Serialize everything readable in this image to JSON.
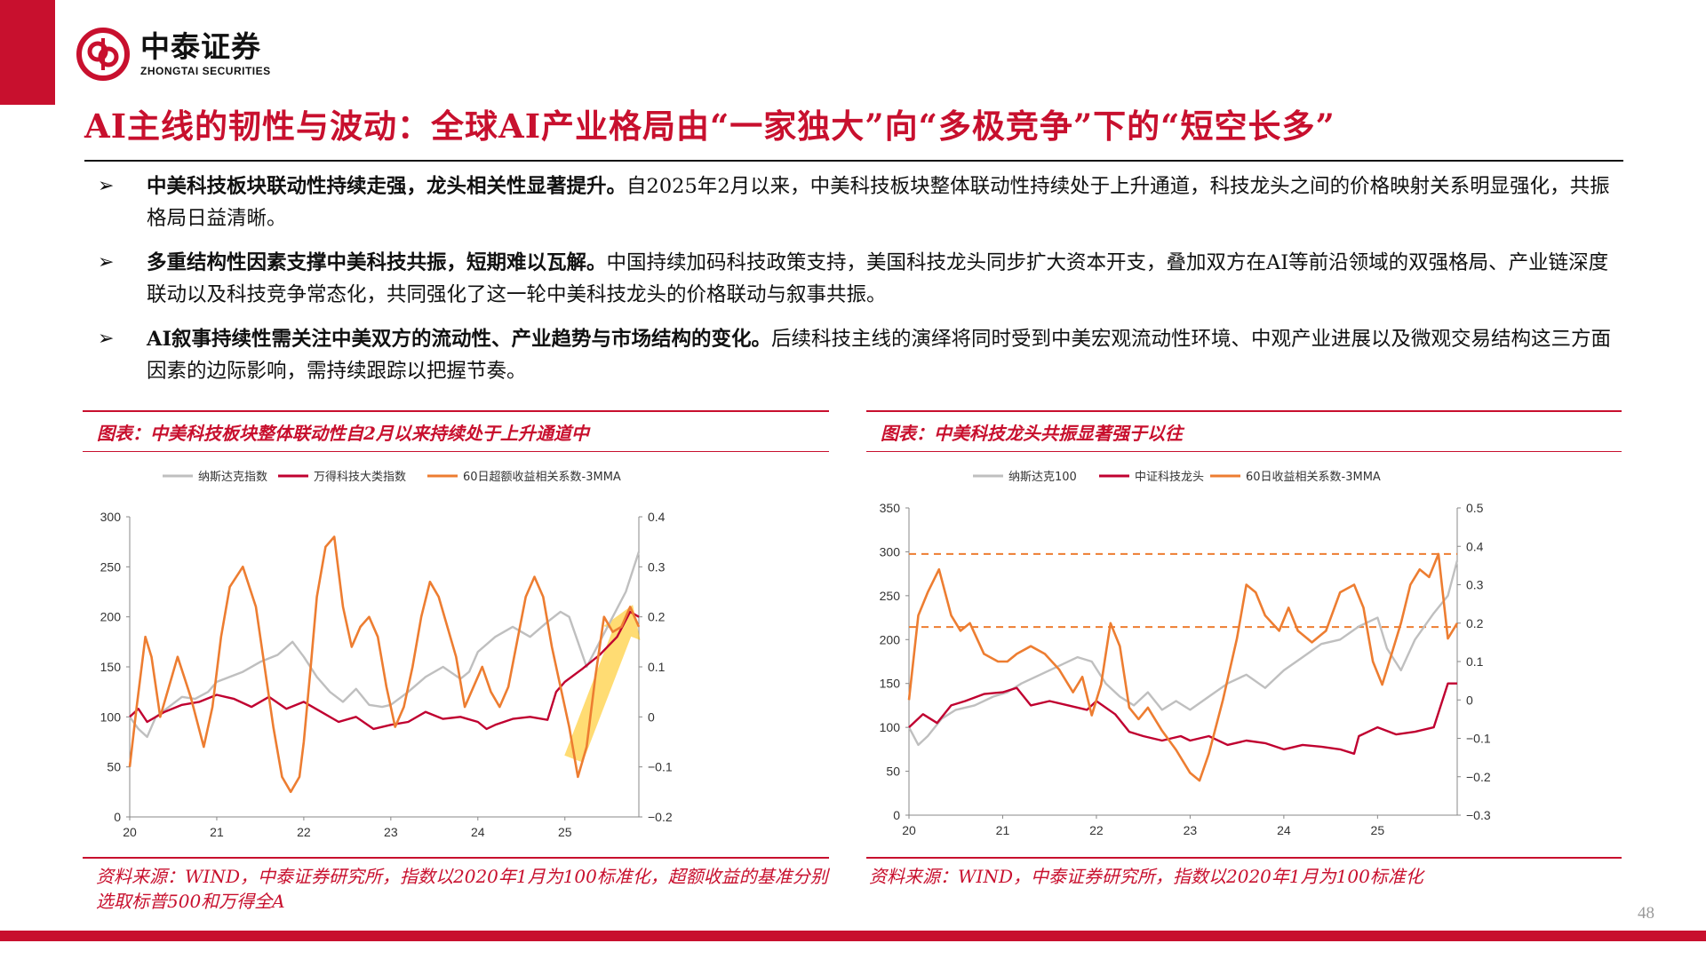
{
  "header": {
    "logo_cn": "中泰证券",
    "logo_en": "ZHONGTAI SECURITIES",
    "title": "AI主线的韧性与波动：全球AI产业格局由“一家独大”向“多极竞争”下的“短空长多”",
    "brand_color": "#c8102e"
  },
  "bullets": [
    {
      "mark": "➢",
      "bold": "中美科技板块联动性持续走强，龙头相关性显著提升。",
      "text": "自2025年2月以来，中美科技板块整体联动性持续处于上升通道，科技龙头之间的价格映射关系明显强化，共振格局日益清晰。"
    },
    {
      "mark": "➢",
      "bold": "多重结构性因素支撑中美科技共振，短期难以瓦解。",
      "text": "中国持续加码科技政策支持，美国科技龙头同步扩大资本开支，叠加双方在AI等前沿领域的双强格局、产业链深度联动以及科技竞争常态化，共同强化了这一轮中美科技龙头的价格联动与叙事共振。"
    },
    {
      "mark": "➢",
      "bold": "AI叙事持续性需关注中美双方的流动性、产业趋势与市场结构的变化。",
      "text": "后续科技主线的演绎将同时受到中美宏观流动性环境、中观产业进展以及微观交易结构这三方面因素的边际影响，需持续跟踪以把握节奏。"
    }
  ],
  "panels": {
    "left_title": "图表：中美科技板块整体联动性自2月以来持续处于上升通道中",
    "right_title": "图表：中美科技龙头共振显著强于以往",
    "left_source": "资料来源：WIND，中泰证券研究所，指数以2020年1月为100标准化，超额收益的基准分别选取标普500和万得全A",
    "right_source": "资料来源：WIND，中泰证券研究所，指数以2020年1月为100标准化"
  },
  "page_number": "48",
  "chart_data": [
    {
      "type": "line",
      "x_ticks": [
        "20",
        "21",
        "22",
        "23",
        "24",
        "25"
      ],
      "x_range": [
        2020,
        2025.85
      ],
      "ylim_left": [
        0,
        300
      ],
      "yticks_left": [
        "0",
        "50",
        "100",
        "150",
        "200",
        "250",
        "300"
      ],
      "ylim_right": [
        -0.2,
        0.4
      ],
      "yticks_right": [
        "−0.2",
        "−0.1",
        "0",
        "0.1",
        "0.2",
        "0.3",
        "0.4"
      ],
      "legend_position": "top",
      "annotation": "upward arrow from early 2025 to late 2025",
      "series": [
        {
          "name": "纳斯达克指数",
          "axis": "left",
          "color": "#bfbfbf",
          "x": [
            2020.0,
            2020.1,
            2020.2,
            2020.3,
            2020.45,
            2020.6,
            2020.75,
            2020.9,
            2021.0,
            2021.15,
            2021.3,
            2021.5,
            2021.7,
            2021.87,
            2022.0,
            2022.15,
            2022.3,
            2022.45,
            2022.6,
            2022.75,
            2022.9,
            2023.0,
            2023.2,
            2023.4,
            2023.6,
            2023.8,
            2023.9,
            2024.0,
            2024.2,
            2024.4,
            2024.6,
            2024.8,
            2024.95,
            2025.05,
            2025.15,
            2025.25,
            2025.4,
            2025.55,
            2025.7,
            2025.85
          ],
          "y": [
            100,
            88,
            80,
            100,
            110,
            120,
            118,
            125,
            135,
            140,
            145,
            155,
            162,
            175,
            160,
            140,
            125,
            115,
            128,
            112,
            110,
            112,
            125,
            140,
            150,
            138,
            145,
            165,
            180,
            190,
            180,
            195,
            205,
            200,
            175,
            150,
            175,
            200,
            225,
            265
          ]
        },
        {
          "name": "万得科技大类指数",
          "axis": "left",
          "color": "#c00030",
          "x": [
            2020.0,
            2020.1,
            2020.2,
            2020.4,
            2020.6,
            2020.8,
            2021.0,
            2021.2,
            2021.4,
            2021.6,
            2021.8,
            2022.0,
            2022.2,
            2022.4,
            2022.6,
            2022.8,
            2023.0,
            2023.2,
            2023.4,
            2023.6,
            2023.8,
            2024.0,
            2024.1,
            2024.2,
            2024.4,
            2024.6,
            2024.8,
            2024.9,
            2025.0,
            2025.2,
            2025.4,
            2025.6,
            2025.75,
            2025.85
          ],
          "y": [
            100,
            108,
            95,
            105,
            112,
            115,
            122,
            118,
            110,
            120,
            108,
            115,
            105,
            95,
            100,
            88,
            92,
            95,
            105,
            98,
            100,
            95,
            88,
            92,
            98,
            100,
            97,
            125,
            135,
            148,
            162,
            180,
            205,
            200
          ]
        },
        {
          "name": "60日超额收益相关系数-3MMA",
          "axis": "right",
          "color": "#ed7d31",
          "x": [
            2020.0,
            2020.08,
            2020.18,
            2020.25,
            2020.35,
            2020.45,
            2020.55,
            2020.7,
            2020.85,
            2020.95,
            2021.05,
            2021.15,
            2021.3,
            2021.45,
            2021.55,
            2021.65,
            2021.75,
            2021.85,
            2021.95,
            2022.0,
            2022.08,
            2022.15,
            2022.25,
            2022.35,
            2022.45,
            2022.55,
            2022.65,
            2022.75,
            2022.85,
            2022.95,
            2023.05,
            2023.15,
            2023.25,
            2023.35,
            2023.45,
            2023.55,
            2023.65,
            2023.75,
            2023.85,
            2023.95,
            2024.05,
            2024.15,
            2024.25,
            2024.35,
            2024.45,
            2024.55,
            2024.65,
            2024.75,
            2024.85,
            2024.95,
            2025.05,
            2025.15,
            2025.25,
            2025.35,
            2025.45,
            2025.55,
            2025.65,
            2025.75,
            2025.85
          ],
          "y": [
            -0.1,
            0.02,
            0.16,
            0.12,
            0.0,
            0.06,
            0.12,
            0.04,
            -0.06,
            0.02,
            0.16,
            0.26,
            0.3,
            0.22,
            0.1,
            -0.02,
            -0.12,
            -0.15,
            -0.12,
            -0.05,
            0.1,
            0.24,
            0.34,
            0.36,
            0.22,
            0.14,
            0.18,
            0.2,
            0.16,
            0.06,
            -0.02,
            0.02,
            0.1,
            0.2,
            0.27,
            0.24,
            0.18,
            0.12,
            0.02,
            0.06,
            0.1,
            0.05,
            0.02,
            0.06,
            0.15,
            0.24,
            0.28,
            0.24,
            0.14,
            0.06,
            -0.02,
            -0.12,
            -0.06,
            0.08,
            0.2,
            0.17,
            0.18,
            0.22,
            0.18
          ]
        }
      ]
    },
    {
      "type": "line",
      "x_ticks": [
        "20",
        "21",
        "22",
        "23",
        "24",
        "25"
      ],
      "x_range": [
        2020,
        2025.85
      ],
      "ylim_left": [
        0,
        350
      ],
      "yticks_left": [
        "0",
        "50",
        "100",
        "150",
        "200",
        "250",
        "300",
        "350"
      ],
      "ylim_right": [
        -0.3,
        0.5
      ],
      "yticks_right": [
        "−0.3",
        "−0.2",
        "−0.1",
        "0",
        "0.1",
        "0.2",
        "0.3",
        "0.4",
        "0.5"
      ],
      "legend_position": "top",
      "reference_lines_right_axis": [
        0.38,
        0.19
      ],
      "series": [
        {
          "name": "纳斯达克100",
          "axis": "left",
          "color": "#bfbfbf",
          "x": [
            2020.0,
            2020.1,
            2020.2,
            2020.35,
            2020.5,
            2020.7,
            2020.9,
            2021.05,
            2021.2,
            2021.4,
            2021.6,
            2021.8,
            2021.95,
            2022.1,
            2022.25,
            2022.4,
            2022.55,
            2022.7,
            2022.85,
            2023.0,
            2023.2,
            2023.4,
            2023.6,
            2023.8,
            2024.0,
            2024.2,
            2024.4,
            2024.6,
            2024.8,
            2025.0,
            2025.1,
            2025.25,
            2025.4,
            2025.6,
            2025.75,
            2025.85
          ],
          "y": [
            100,
            80,
            90,
            110,
            120,
            125,
            135,
            140,
            150,
            160,
            170,
            180,
            175,
            150,
            135,
            125,
            140,
            120,
            130,
            120,
            135,
            150,
            160,
            145,
            165,
            180,
            195,
            200,
            215,
            225,
            190,
            165,
            200,
            230,
            250,
            290
          ]
        },
        {
          "name": "中证科技龙头",
          "axis": "left",
          "color": "#c00030",
          "x": [
            2020.0,
            2020.15,
            2020.3,
            2020.45,
            2020.6,
            2020.8,
            2021.0,
            2021.15,
            2021.3,
            2021.5,
            2021.7,
            2021.9,
            2022.0,
            2022.2,
            2022.35,
            2022.5,
            2022.7,
            2022.9,
            2023.0,
            2023.2,
            2023.4,
            2023.6,
            2023.8,
            2024.0,
            2024.2,
            2024.4,
            2024.6,
            2024.75,
            2024.8,
            2025.0,
            2025.2,
            2025.4,
            2025.6,
            2025.75,
            2025.85
          ],
          "y": [
            100,
            115,
            105,
            125,
            130,
            138,
            140,
            145,
            125,
            130,
            125,
            120,
            130,
            115,
            95,
            90,
            85,
            90,
            85,
            90,
            80,
            85,
            82,
            75,
            80,
            78,
            75,
            70,
            90,
            100,
            92,
            95,
            100,
            150,
            150
          ]
        },
        {
          "name": "60日收益相关系数-3MMA",
          "axis": "right",
          "color": "#ed7d31",
          "x": [
            2020.0,
            2020.1,
            2020.2,
            2020.32,
            2020.45,
            2020.55,
            2020.65,
            2020.8,
            2020.95,
            2021.05,
            2021.15,
            2021.3,
            2021.45,
            2021.6,
            2021.75,
            2021.85,
            2021.95,
            2022.05,
            2022.15,
            2022.25,
            2022.35,
            2022.45,
            2022.55,
            2022.7,
            2022.85,
            2023.0,
            2023.1,
            2023.2,
            2023.35,
            2023.5,
            2023.6,
            2023.7,
            2023.8,
            2023.95,
            2024.05,
            2024.15,
            2024.3,
            2024.45,
            2024.6,
            2024.75,
            2024.85,
            2024.95,
            2025.05,
            2025.15,
            2025.25,
            2025.35,
            2025.45,
            2025.55,
            2025.65,
            2025.75,
            2025.85
          ],
          "y": [
            0.0,
            0.22,
            0.28,
            0.34,
            0.22,
            0.18,
            0.2,
            0.12,
            0.1,
            0.1,
            0.12,
            0.14,
            0.12,
            0.08,
            0.02,
            0.06,
            -0.04,
            0.04,
            0.2,
            0.14,
            -0.02,
            -0.05,
            -0.02,
            -0.08,
            -0.13,
            -0.19,
            -0.21,
            -0.14,
            0.0,
            0.16,
            0.3,
            0.28,
            0.22,
            0.18,
            0.24,
            0.18,
            0.15,
            0.18,
            0.28,
            0.3,
            0.24,
            0.1,
            0.04,
            0.12,
            0.2,
            0.3,
            0.34,
            0.32,
            0.38,
            0.16,
            0.2
          ]
        }
      ]
    }
  ]
}
